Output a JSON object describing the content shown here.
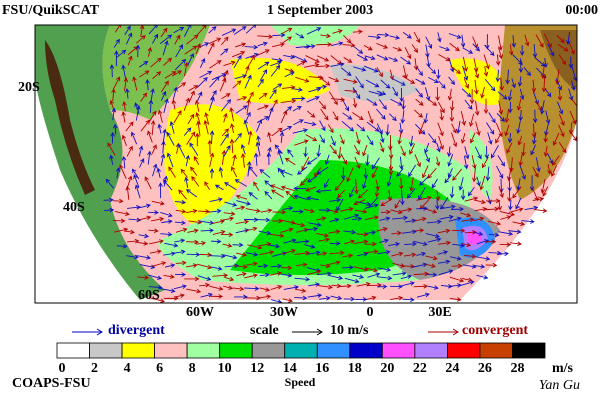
{
  "header": {
    "left": "FSU/QuikSCAT",
    "center": "1 September 2003",
    "right": "00:00"
  },
  "map": {
    "lat_labels": [
      "20S",
      "40S",
      "60S"
    ],
    "lon_labels": [
      "60W",
      "30W",
      "0",
      "30E"
    ]
  },
  "legend": {
    "divergent": "divergent",
    "scale": "scale",
    "scale_value": "10 m/s",
    "convergent": "convergent"
  },
  "colorbar": {
    "title": "Speed",
    "unit": "m/s",
    "ticks": [
      0,
      2,
      4,
      6,
      8,
      10,
      12,
      14,
      16,
      18,
      20,
      22,
      24,
      26,
      28
    ],
    "colors": [
      "#ffffff",
      "#c8c8c8",
      "#ffff00",
      "#ffc0c0",
      "#a0ffa0",
      "#00e000",
      "#989898",
      "#00b0b0",
      "#3090ff",
      "#0000c8",
      "#ff50ff",
      "#b080ff",
      "#ff0000",
      "#c84000",
      "#000000"
    ]
  },
  "footer": {
    "left": "COAPS-FSU",
    "right": "Yan Gu"
  }
}
